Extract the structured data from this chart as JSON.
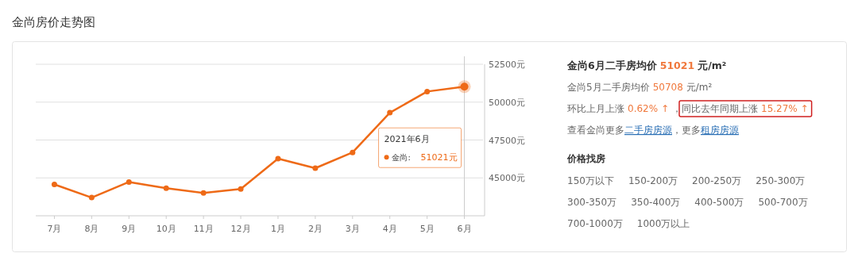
{
  "chart_data": [
    {
      "type": "line",
      "title": "金尚房价走势图",
      "categories": [
        "7月",
        "8月",
        "9月",
        "10月",
        "11月",
        "12月",
        "1月",
        "2月",
        "3月",
        "4月",
        "5月",
        "6月"
      ],
      "series": [
        {
          "name": "金尚",
          "color": "#ee6a17",
          "values": [
            44570,
            43700,
            44730,
            44320,
            44000,
            44270,
            46270,
            45640,
            46680,
            49300,
            50700,
            51021
          ]
        }
      ],
      "ylim": [
        42500,
        52500
      ],
      "yticks": [
        {
          "value": 45000,
          "label": "45000元"
        },
        {
          "value": 47500,
          "label": "47500元"
        },
        {
          "value": 50000,
          "label": "50000元"
        },
        {
          "value": 52500,
          "label": "52500元"
        }
      ],
      "grid": "y",
      "marker": "circle",
      "line_style": "solid",
      "ref_lines": [
        {
          "axis": "x",
          "value": "6月",
          "color": "#cccccc"
        }
      ],
      "annotations": [
        "2021年6月",
        ":",
        "51021元"
      ]
    },
    {
      "type": "other",
      "annotations": [
        "金尚6月二手房均价",
        "51021",
        "元/m²",
        "金尚5月二手房均价",
        "50708",
        "元/m²",
        "环比上月上涨",
        "0.62% ↑",
        "，",
        "同比去年同期上涨",
        "15.27% ↑",
        "查看金尚更多",
        "二手房房源",
        "，更多",
        "租房房源",
        "价格找房",
        "150万以下",
        "150-200万",
        "200-250万",
        "250-300万",
        "300-350万",
        "350-400万",
        "400-500万",
        "500-700万",
        "700-1000万",
        "1000万以上"
      ]
    }
  ]
}
